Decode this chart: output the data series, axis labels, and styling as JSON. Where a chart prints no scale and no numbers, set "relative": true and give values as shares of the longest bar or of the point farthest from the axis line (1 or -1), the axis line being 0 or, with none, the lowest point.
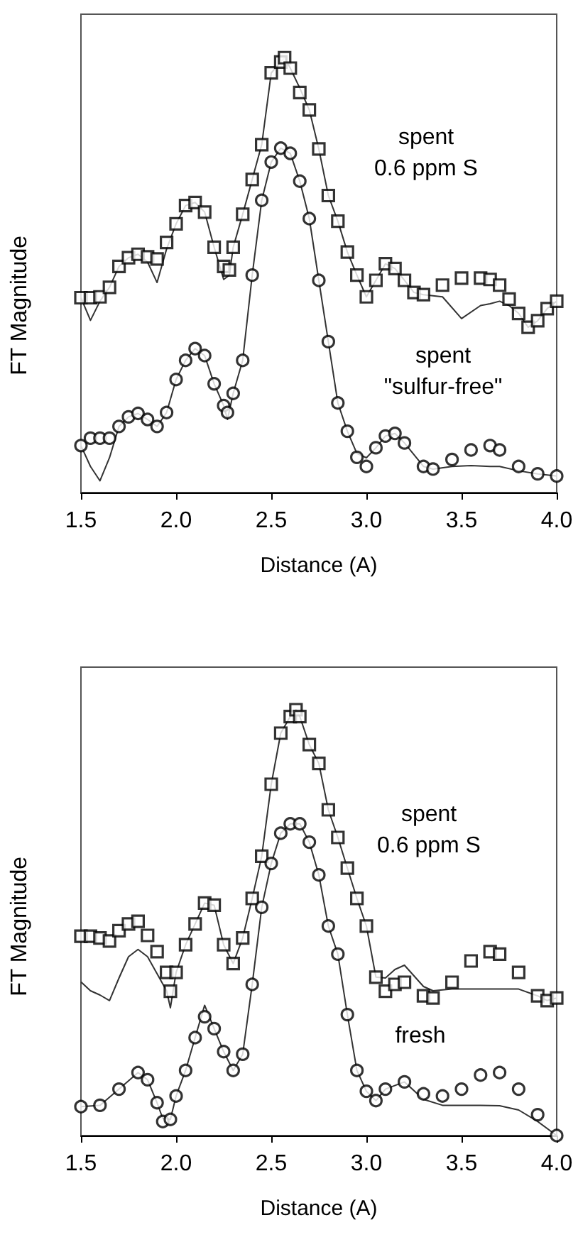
{
  "chart_data": [
    {
      "type": "line",
      "xlabel": "Distance (A)",
      "ylabel": "FT Magnitude",
      "relative": true,
      "grid": false,
      "xlim": [
        1.5,
        4.0
      ],
      "xticks": [
        1.5,
        {
          "value": 2,
          "label": "2.0"
        },
        2.5,
        {
          "value": 3,
          "label": "3.0"
        },
        3.5,
        {
          "value": 4,
          "label": "4.0"
        }
      ],
      "series": [
        {
          "marker": "none",
          "color": "#333333",
          "x": [
            1.5,
            1.55,
            1.6,
            1.65,
            1.7,
            1.75,
            1.8,
            1.85,
            1.9,
            1.95,
            2.0,
            2.05,
            2.1,
            2.15,
            2.2,
            2.25,
            2.28,
            2.3,
            2.35,
            2.4,
            2.45,
            2.5,
            2.55,
            2.57,
            2.6,
            2.65,
            2.7,
            2.75,
            2.8,
            2.85,
            2.9,
            2.95,
            3.0,
            3.05,
            3.1,
            3.15,
            3.2,
            3.25,
            3.3,
            3.4,
            3.5,
            3.6,
            3.65,
            3.7,
            3.75,
            3.8,
            3.85,
            3.9,
            3.95,
            4.0
          ],
          "values": [
            0.448,
            0.396,
            0.44,
            0.472,
            0.52,
            0.54,
            0.548,
            0.53,
            0.483,
            0.56,
            0.618,
            0.66,
            0.667,
            0.645,
            0.564,
            0.49,
            0.5,
            0.564,
            0.64,
            0.72,
            0.8,
            0.965,
            0.99,
            1.0,
            0.976,
            0.93,
            0.88,
            0.79,
            0.683,
            0.624,
            0.553,
            0.5,
            0.45,
            0.488,
            0.526,
            0.515,
            0.488,
            0.46,
            0.455,
            0.45,
            0.4,
            0.43,
            0.434,
            0.44,
            0.43,
            0.412,
            0.38,
            0.395,
            0.423,
            0.44
          ]
        },
        {
          "type": "scatter",
          "marker": "square",
          "color": "#000000",
          "x": [
            1.5,
            1.55,
            1.6,
            1.65,
            1.7,
            1.75,
            1.8,
            1.85,
            1.9,
            1.95,
            2.0,
            2.05,
            2.1,
            2.15,
            2.2,
            2.25,
            2.28,
            2.3,
            2.35,
            2.4,
            2.45,
            2.5,
            2.55,
            2.57,
            2.6,
            2.65,
            2.7,
            2.75,
            2.8,
            2.85,
            2.9,
            2.95,
            3.0,
            3.05,
            3.1,
            3.15,
            3.2,
            3.25,
            3.3,
            3.4,
            3.5,
            3.6,
            3.65,
            3.7,
            3.75,
            3.8,
            3.85,
            3.9,
            3.95,
            4.0
          ],
          "values": [
            0.448,
            0.448,
            0.45,
            0.472,
            0.52,
            0.54,
            0.548,
            0.542,
            0.537,
            0.575,
            0.618,
            0.66,
            0.667,
            0.645,
            0.564,
            0.52,
            0.512,
            0.564,
            0.64,
            0.72,
            0.8,
            0.965,
            0.99,
            1.0,
            0.976,
            0.92,
            0.88,
            0.79,
            0.683,
            0.624,
            0.553,
            0.5,
            0.45,
            0.488,
            0.526,
            0.515,
            0.488,
            0.46,
            0.455,
            0.477,
            0.493,
            0.493,
            0.49,
            0.477,
            0.445,
            0.412,
            0.38,
            0.395,
            0.423,
            0.44
          ]
        },
        {
          "marker": "none",
          "color": "#333333",
          "x": [
            1.5,
            1.55,
            1.6,
            1.65,
            1.7,
            1.75,
            1.8,
            1.85,
            1.9,
            1.95,
            2.0,
            2.05,
            2.1,
            2.15,
            2.2,
            2.25,
            2.27,
            2.3,
            2.35,
            2.4,
            2.45,
            2.5,
            2.55,
            2.6,
            2.65,
            2.7,
            2.75,
            2.8,
            2.85,
            2.9,
            2.95,
            3.0,
            3.05,
            3.1,
            3.15,
            3.2,
            3.3,
            3.35,
            3.45,
            3.55,
            3.65,
            3.7,
            3.8,
            3.9,
            4.0
          ],
          "values": [
            0.108,
            0.06,
            0.027,
            0.08,
            0.152,
            0.174,
            0.182,
            0.168,
            0.152,
            0.184,
            0.26,
            0.304,
            0.331,
            0.315,
            0.25,
            0.2,
            0.168,
            0.228,
            0.304,
            0.5,
            0.672,
            0.76,
            0.792,
            0.78,
            0.716,
            0.63,
            0.488,
            0.347,
            0.206,
            0.141,
            0.09,
            0.08,
            0.103,
            0.13,
            0.136,
            0.114,
            0.06,
            0.054,
            0.06,
            0.062,
            0.06,
            0.06,
            0.05,
            0.043,
            0.038
          ]
        },
        {
          "type": "scatter",
          "marker": "circle",
          "color": "#000000",
          "x": [
            1.5,
            1.55,
            1.6,
            1.65,
            1.7,
            1.75,
            1.8,
            1.85,
            1.9,
            1.95,
            2.0,
            2.05,
            2.1,
            2.15,
            2.2,
            2.25,
            2.27,
            2.3,
            2.35,
            2.4,
            2.45,
            2.5,
            2.55,
            2.6,
            2.65,
            2.7,
            2.75,
            2.8,
            2.85,
            2.9,
            2.95,
            3.0,
            3.05,
            3.1,
            3.15,
            3.2,
            3.3,
            3.35,
            3.45,
            3.55,
            3.65,
            3.7,
            3.8,
            3.9,
            4.0
          ],
          "values": [
            0.108,
            0.125,
            0.125,
            0.125,
            0.152,
            0.174,
            0.182,
            0.168,
            0.152,
            0.184,
            0.26,
            0.304,
            0.331,
            0.315,
            0.25,
            0.2,
            0.184,
            0.228,
            0.304,
            0.5,
            0.672,
            0.76,
            0.792,
            0.78,
            0.716,
            0.63,
            0.488,
            0.347,
            0.206,
            0.141,
            0.081,
            0.06,
            0.103,
            0.13,
            0.136,
            0.114,
            0.06,
            0.054,
            0.076,
            0.098,
            0.108,
            0.098,
            0.06,
            0.043,
            0.038
          ]
        }
      ],
      "annotations": [
        "spent\n0.6 ppm S",
        "spent\n\"sulfur-free\""
      ]
    },
    {
      "type": "line",
      "xlabel": "Distance (A)",
      "ylabel": "FT Magnitude",
      "relative": true,
      "grid": false,
      "xlim": [
        1.5,
        4.0
      ],
      "xticks": [
        1.5,
        {
          "value": 2,
          "label": "2.0"
        },
        2.5,
        {
          "value": 3,
          "label": "3.0"
        },
        3.5,
        {
          "value": 4,
          "label": "4.0"
        }
      ],
      "series": [
        {
          "marker": "none",
          "color": "#333333",
          "x": [
            1.5,
            1.55,
            1.6,
            1.65,
            1.7,
            1.75,
            1.8,
            1.85,
            1.9,
            1.95,
            1.97,
            2.0,
            2.05,
            2.1,
            2.15,
            2.2,
            2.25,
            2.3,
            2.35,
            2.4,
            2.45,
            2.5,
            2.55,
            2.6,
            2.63,
            2.65,
            2.7,
            2.75,
            2.8,
            2.85,
            2.9,
            2.95,
            3.0,
            3.05,
            3.1,
            3.15,
            3.2,
            3.3,
            3.35,
            3.45,
            3.55,
            3.65,
            3.7,
            3.8,
            3.9,
            3.95,
            4.0
          ],
          "values": [
            0.361,
            0.34,
            0.33,
            0.317,
            0.37,
            0.42,
            0.437,
            0.42,
            0.38,
            0.34,
            0.3,
            0.383,
            0.448,
            0.497,
            0.546,
            0.541,
            0.448,
            0.404,
            0.464,
            0.557,
            0.656,
            0.825,
            0.945,
            0.984,
            1.0,
            0.984,
            0.918,
            0.874,
            0.765,
            0.7,
            0.628,
            0.557,
            0.492,
            0.372,
            0.37,
            0.39,
            0.4,
            0.35,
            0.34,
            0.344,
            0.344,
            0.344,
            0.344,
            0.344,
            0.328,
            0.317,
            0.323
          ]
        },
        {
          "type": "scatter",
          "marker": "square",
          "color": "#000000",
          "x": [
            1.5,
            1.55,
            1.6,
            1.65,
            1.7,
            1.75,
            1.8,
            1.85,
            1.9,
            1.95,
            1.97,
            2.0,
            2.05,
            2.1,
            2.15,
            2.2,
            2.25,
            2.3,
            2.35,
            2.4,
            2.45,
            2.5,
            2.55,
            2.6,
            2.63,
            2.65,
            2.7,
            2.75,
            2.8,
            2.85,
            2.9,
            2.95,
            3.0,
            3.05,
            3.1,
            3.15,
            3.2,
            3.3,
            3.35,
            3.45,
            3.55,
            3.65,
            3.7,
            3.8,
            3.9,
            3.95,
            4.0
          ],
          "values": [
            0.468,
            0.468,
            0.464,
            0.457,
            0.481,
            0.497,
            0.503,
            0.47,
            0.432,
            0.383,
            0.339,
            0.383,
            0.448,
            0.497,
            0.546,
            0.541,
            0.448,
            0.404,
            0.464,
            0.557,
            0.656,
            0.825,
            0.945,
            0.984,
            1.0,
            0.984,
            0.918,
            0.874,
            0.765,
            0.7,
            0.628,
            0.557,
            0.492,
            0.372,
            0.339,
            0.355,
            0.36,
            0.328,
            0.323,
            0.36,
            0.41,
            0.432,
            0.426,
            0.383,
            0.328,
            0.317,
            0.323
          ]
        },
        {
          "marker": "none",
          "color": "#333333",
          "x": [
            1.5,
            1.6,
            1.7,
            1.8,
            1.85,
            1.9,
            1.93,
            1.97,
            2.0,
            2.05,
            2.1,
            2.15,
            2.2,
            2.25,
            2.3,
            2.35,
            2.4,
            2.45,
            2.5,
            2.55,
            2.6,
            2.65,
            2.7,
            2.75,
            2.8,
            2.85,
            2.9,
            2.95,
            3.0,
            3.05,
            3.1,
            3.2,
            3.3,
            3.4,
            3.5,
            3.6,
            3.7,
            3.8,
            3.9,
            4.0
          ],
          "values": [
            0.068,
            0.071,
            0.109,
            0.148,
            0.131,
            0.077,
            0.04,
            0.038,
            0.093,
            0.153,
            0.23,
            0.306,
            0.251,
            0.197,
            0.153,
            0.191,
            0.355,
            0.536,
            0.639,
            0.71,
            0.732,
            0.732,
            0.689,
            0.612,
            0.492,
            0.426,
            0.284,
            0.153,
            0.104,
            0.082,
            0.109,
            0.126,
            0.085,
            0.071,
            0.071,
            0.071,
            0.07,
            0.06,
            0.033,
            0
          ]
        },
        {
          "type": "scatter",
          "marker": "circle",
          "color": "#000000",
          "x": [
            1.5,
            1.6,
            1.7,
            1.8,
            1.85,
            1.9,
            1.93,
            1.97,
            2.0,
            2.05,
            2.1,
            2.15,
            2.2,
            2.25,
            2.3,
            2.35,
            2.4,
            2.45,
            2.5,
            2.55,
            2.6,
            2.65,
            2.7,
            2.75,
            2.8,
            2.85,
            2.9,
            2.95,
            3.0,
            3.05,
            3.1,
            3.2,
            3.3,
            3.4,
            3.5,
            3.6,
            3.7,
            3.8,
            3.9,
            4.0
          ],
          "values": [
            0.068,
            0.071,
            0.109,
            0.148,
            0.131,
            0.077,
            0.033,
            0.038,
            0.093,
            0.153,
            0.23,
            0.279,
            0.251,
            0.197,
            0.153,
            0.191,
            0.355,
            0.536,
            0.639,
            0.71,
            0.732,
            0.732,
            0.689,
            0.612,
            0.492,
            0.426,
            0.284,
            0.153,
            0.104,
            0.082,
            0.109,
            0.126,
            0.098,
            0.093,
            0.109,
            0.142,
            0.148,
            0.109,
            0.049,
            0
          ]
        }
      ],
      "annotations": [
        "spent\n0.6 ppm S",
        "fresh"
      ]
    }
  ]
}
